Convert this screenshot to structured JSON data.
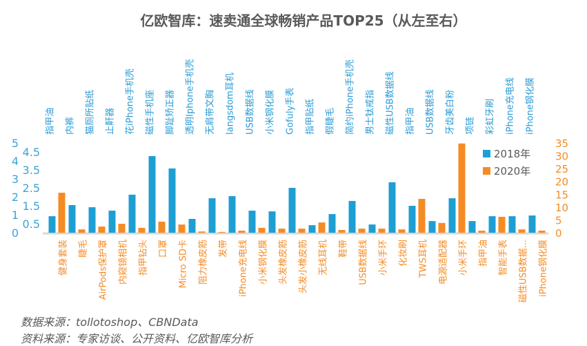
{
  "title": "亿欧智库：速卖通全球畅销产品TOP25（从左至右）",
  "footnotes": [
    "数据来源：tollotoshop、CBNData",
    "资料来源：专家访谈、公开资料、亿欧智库分析"
  ],
  "chart_data": {
    "type": "bar",
    "title": "亿欧智库：速卖通全球畅销产品TOP25（从左至右）",
    "categories_2018": [
      "指甲油",
      "内裤",
      "猫厕所贴纸",
      "止鼾器",
      "花iPhone手机壳",
      "磁性手机座",
      "脚趾矫正器",
      "透明Iphone手机壳",
      "无肩带文胸",
      "langsdom耳机",
      "USB数据线",
      "小米钢化膜",
      "Gofuly手表",
      "指甲贴纸",
      "假睫毛",
      "简约iPhone手机壳",
      "男士钛戒指",
      "磁性USB数据线",
      "指甲油",
      "USB数据线",
      "牙齿美白粉",
      "项链",
      "彩虹牙刷",
      "iPhone充电线",
      "iPhone钢化膜"
    ],
    "categories_2020": [
      "健身套装",
      "睫毛",
      "AirPods保护罩",
      "内窥镜相机",
      "指甲钻头",
      "口罩",
      "Micro SD卡",
      "阻力橡皮筋",
      "发带",
      "iPhone充电线",
      "小米钢化膜",
      "头发橡皮筋",
      "头发小橡皮筋",
      "无线耳机",
      "鞋带",
      "USB数据线",
      "小米手环",
      "化妆刷",
      "TWS耳机",
      "电源适配器",
      "小米手环",
      "指甲油",
      "智能手表",
      "磁性USB数据...",
      "iPhone钢化膜"
    ],
    "series": [
      {
        "name": "2018年",
        "axis": "left",
        "color": "#1E9FD4",
        "values": [
          0.92,
          1.54,
          1.42,
          1.23,
          2.12,
          4.27,
          3.58,
          0.77,
          1.92,
          2.04,
          1.23,
          1.19,
          2.5,
          0.42,
          1.04,
          1.77,
          0.46,
          2.81,
          1.5,
          0.65,
          1.92,
          0.65,
          0.92,
          0.92,
          0.96
        ]
      },
      {
        "name": "2020年",
        "axis": "right",
        "color": "#F68B24",
        "values": [
          15.6,
          1.3,
          2.4,
          3.5,
          1.9,
          4.3,
          3.2,
          0.5,
          0.3,
          0.8,
          1.9,
          1.6,
          1.6,
          4.0,
          1.1,
          1.6,
          1.6,
          1.3,
          13.2,
          3.8,
          34.8,
          0.8,
          6.2,
          1.3,
          0.8
        ]
      }
    ],
    "left_axis": {
      "ylim": [
        0,
        5
      ],
      "ticks": [
        "0",
        "0.5",
        "1",
        "1.5",
        "2",
        "2.5",
        "3",
        "3.5",
        "4",
        "4.5",
        "5"
      ]
    },
    "right_axis": {
      "ylim": [
        0,
        35
      ],
      "ticks": [
        "0",
        "5",
        "10",
        "15",
        "20",
        "25",
        "30",
        "35"
      ]
    },
    "grid": false,
    "legend": "top-right"
  }
}
